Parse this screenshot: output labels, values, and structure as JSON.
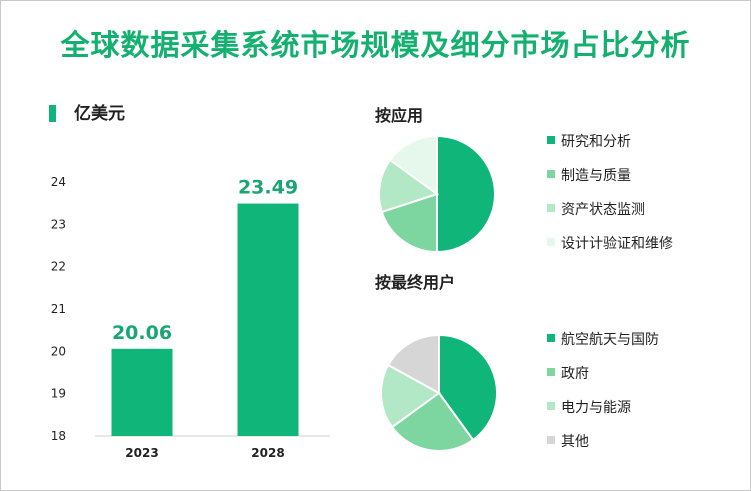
{
  "title": "全球数据采集系统市场规模及细分市场占比分析",
  "colors": {
    "title": "#14b070",
    "bar": "#10b57a",
    "label": "#1aa572"
  },
  "chart_data": [
    {
      "type": "bar",
      "unit": "亿美元",
      "categories": [
        "2023",
        "2028"
      ],
      "values": [
        20.06,
        23.49
      ],
      "data_labels": [
        "20.06",
        "23.49"
      ],
      "ylim": [
        18,
        24
      ],
      "yticks": [
        "18",
        "19",
        "20",
        "21",
        "22",
        "23",
        "24"
      ],
      "grid": false
    },
    {
      "type": "pie",
      "title": "按应用",
      "labels": [
        "研究和分析",
        "制造与质量",
        "资产状态监测",
        "设计计验证和维修"
      ],
      "values": [
        50,
        20,
        15,
        15
      ],
      "colors": [
        "#10b57a",
        "#7dd69f",
        "#b2e8c6",
        "#e6f7ec"
      ]
    },
    {
      "type": "pie",
      "title": "按最终用户",
      "labels": [
        "航空航天与国防",
        "政府",
        "电力与能源",
        "其他"
      ],
      "values": [
        40,
        25,
        18,
        17
      ],
      "colors": [
        "#10b57a",
        "#7dd69f",
        "#b2e8c6",
        "#d6d6d6"
      ]
    }
  ]
}
